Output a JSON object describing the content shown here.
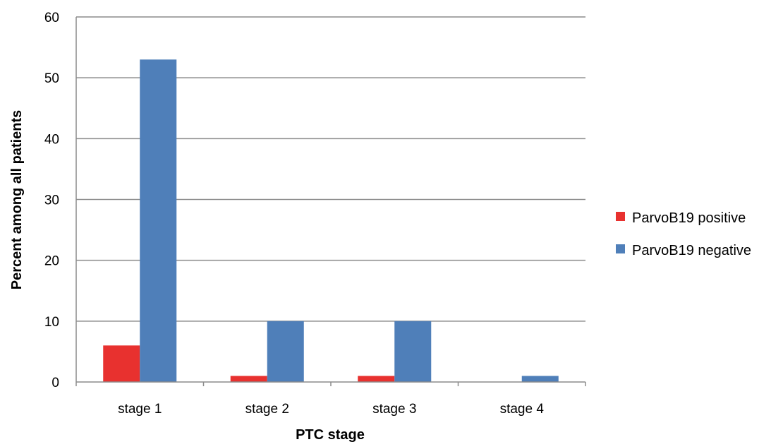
{
  "chart_data": {
    "type": "bar",
    "categories": [
      "stage 1",
      "stage 2",
      "stage 3",
      "stage 4"
    ],
    "series": [
      {
        "name": "ParvoB19 positive",
        "values": [
          6,
          1,
          1,
          0
        ],
        "color": "#e8312f"
      },
      {
        "name": "ParvoB19 negative",
        "values": [
          53,
          10,
          10,
          1
        ],
        "color": "#4f7fb9"
      }
    ],
    "xlabel": "PTC stage",
    "ylabel": "Percent among all patients",
    "ylim": [
      0,
      60
    ],
    "yticks": [
      0,
      10,
      20,
      30,
      40,
      50,
      60
    ],
    "grid": true,
    "legend": "right"
  }
}
